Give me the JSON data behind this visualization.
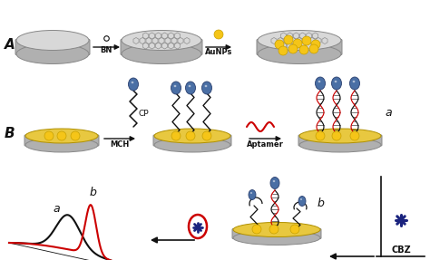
{
  "bg_color": "#ffffff",
  "disk_color_light": "#d8d8d8",
  "disk_color_dark": "#b0b0b0",
  "disk_edge": "#888888",
  "gold_color": "#f5c518",
  "gold_edge": "#c8a000",
  "blue_head_color": "#4a6fa5",
  "blue_head_edge": "#2a3f6f",
  "red_color": "#cc0000",
  "black_color": "#111111",
  "star_color": "#1a237e",
  "yellow_disk_color": "#e8c840",
  "yellow_disk_edge": "#b09000",
  "label_A": "A",
  "label_B": "B",
  "label_BN": "BN",
  "label_AuNPs": "AuNPs",
  "label_CP": "CP",
  "label_MCH": "MCH",
  "label_Aptamer": "Aptamer",
  "label_CBZ": "CBZ",
  "label_a_peak": "a",
  "label_b_peak": "b",
  "label_a_right": "a",
  "label_b_bottom": "b"
}
